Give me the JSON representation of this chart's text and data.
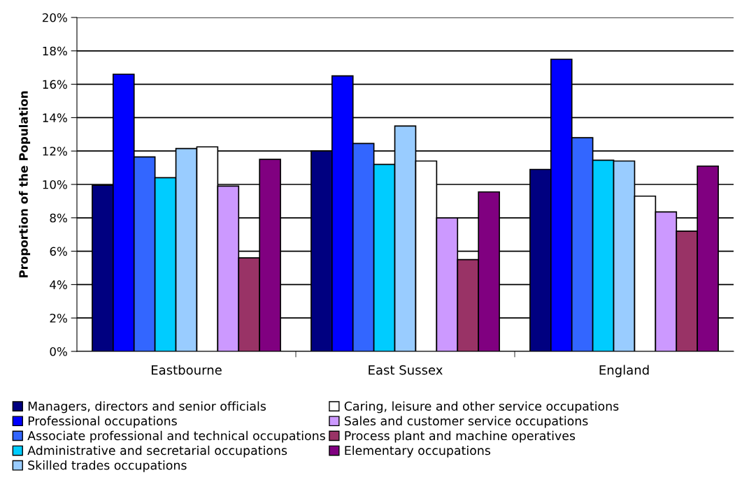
{
  "chart_data": {
    "type": "bar",
    "ylabel": "Proportion of the Population",
    "categories": [
      "Eastbourne",
      "East Sussex",
      "England"
    ],
    "series": [
      {
        "name": "Managers, directors and senior officials",
        "color": "#000080",
        "values": [
          9.95,
          12.0,
          10.9
        ]
      },
      {
        "name": "Professional occupations",
        "color": "#0000ff",
        "values": [
          16.6,
          16.5,
          17.5
        ]
      },
      {
        "name": "Associate professional and technical occupations",
        "color": "#3366ff",
        "values": [
          11.65,
          12.45,
          12.8
        ]
      },
      {
        "name": "Administrative and secretarial occupations",
        "color": "#00ccff",
        "values": [
          10.4,
          11.2,
          11.45
        ]
      },
      {
        "name": "Skilled trades occupations",
        "color": "#99ccff",
        "values": [
          12.15,
          13.5,
          11.4
        ]
      },
      {
        "name": "Caring, leisure and other service occupations",
        "color": "#ffffff",
        "values": [
          12.25,
          11.4,
          9.3
        ]
      },
      {
        "name": "Sales and customer service occupations",
        "color": "#cc99ff",
        "values": [
          9.9,
          8.0,
          8.35
        ]
      },
      {
        "name": "Process plant and machine operatives",
        "color": "#993366",
        "values": [
          5.6,
          5.5,
          7.2
        ]
      },
      {
        "name": "Elementary occupations",
        "color": "#800080",
        "values": [
          11.5,
          9.55,
          11.1
        ]
      }
    ],
    "ylim": [
      0,
      20
    ],
    "yticks": [
      {
        "value": 0,
        "label": "0%"
      },
      {
        "value": 2,
        "label": "2%"
      },
      {
        "value": 4,
        "label": "4%"
      },
      {
        "value": 6,
        "label": "6%"
      },
      {
        "value": 8,
        "label": "8%"
      },
      {
        "value": 10,
        "label": "10%"
      },
      {
        "value": 12,
        "label": "12%"
      },
      {
        "value": 14,
        "label": "14%"
      },
      {
        "value": 16,
        "label": "16%"
      },
      {
        "value": 18,
        "label": "18%"
      },
      {
        "value": 20,
        "label": "20%"
      }
    ],
    "grid": "y",
    "legend": "bottom"
  }
}
